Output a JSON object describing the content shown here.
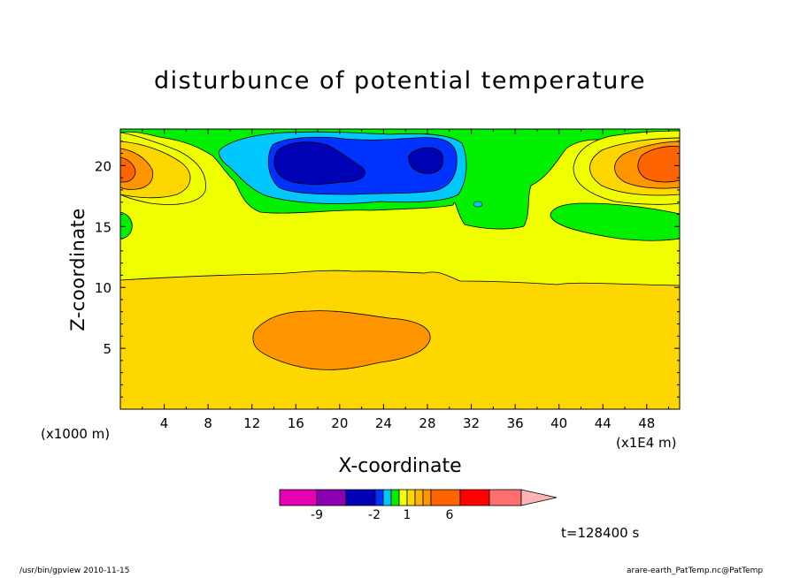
{
  "chart_data": {
    "type": "heatmap",
    "title": "disturbunce of potential temperature",
    "xlabel": "X-coordinate",
    "ylabel": "Z-coordinate",
    "x_scale_label": "(x1000 m)",
    "x_unit_label": "(x1E4 m)",
    "xlim": [
      0,
      51
    ],
    "ylim": [
      0,
      23
    ],
    "x_ticks": [
      "4",
      "8",
      "12",
      "16",
      "20",
      "24",
      "28",
      "32",
      "36",
      "40",
      "44",
      "48"
    ],
    "y_ticks": [
      "5",
      "10",
      "15",
      "20"
    ],
    "colorbar": {
      "colors": [
        "#e600b4",
        "#8c00b4",
        "#0000b4",
        "#0032ff",
        "#00c8ff",
        "#00f000",
        "#f0ff00",
        "#ffd700",
        "#ffb400",
        "#ff9600",
        "#ff6400",
        "#ff0000",
        "#ff6e6e",
        "#ffb4b4"
      ],
      "tick_labels": [
        "-9",
        "-2",
        "1",
        "6"
      ]
    },
    "features": [
      {
        "level": "warm",
        "region": "x 0-51, z 0-10.5"
      },
      {
        "level": "warm-high",
        "region": "x 13-28, z 3.5-6.5"
      },
      {
        "level": "neutral",
        "region": "x 0-51, z 10.5-17"
      },
      {
        "level": "cold-core",
        "region": "x 15-31, z 18-22.5"
      },
      {
        "level": "warm-core",
        "region": "x 0-3 and x 42-51, z 17.5-22"
      }
    ],
    "time_label": "t=128400 s"
  },
  "footer": {
    "left": "/usr/bin/gpview  2010-11-15",
    "right": "arare-earth_PatTemp.nc@PatTemp"
  }
}
